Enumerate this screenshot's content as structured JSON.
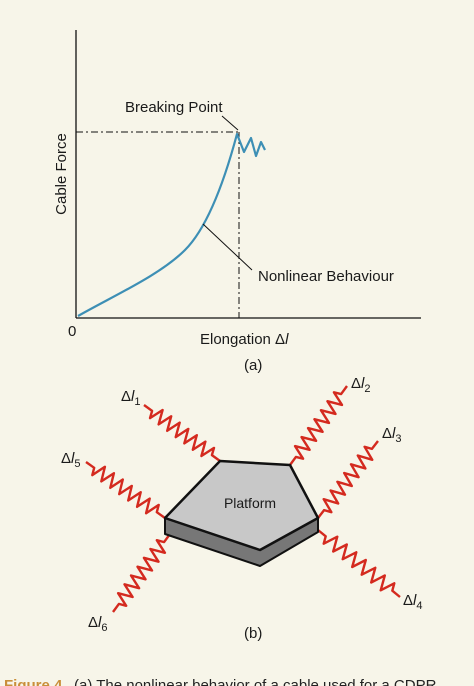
{
  "panel_a": {
    "ylabel": "Cable Force",
    "xlabel": "Elongation Δ",
    "xlabel_italic": "l",
    "origin": "0",
    "breaking_point": "Breaking Point",
    "nonlinear": "Nonlinear Behaviour",
    "label": "(a)",
    "curve_color": "#3d8fb5"
  },
  "panel_b": {
    "platform": "Platform",
    "label": "(b)",
    "spring_color": "#d42a1f",
    "platform_top_color": "#c8c8c8",
    "platform_side_color": "#777777",
    "cables": [
      {
        "delta": "Δ",
        "l": "l",
        "sub": "1"
      },
      {
        "delta": "Δ",
        "l": "l",
        "sub": "2"
      },
      {
        "delta": "Δ",
        "l": "l",
        "sub": "3"
      },
      {
        "delta": "Δ",
        "l": "l",
        "sub": "4"
      },
      {
        "delta": "Δ",
        "l": "l",
        "sub": "5"
      },
      {
        "delta": "Δ",
        "l": "l",
        "sub": "6"
      }
    ]
  },
  "caption": {
    "figure": "Figure 4",
    "text": "(a) The nonlinear behavior of a cable used for a CDPR"
  }
}
